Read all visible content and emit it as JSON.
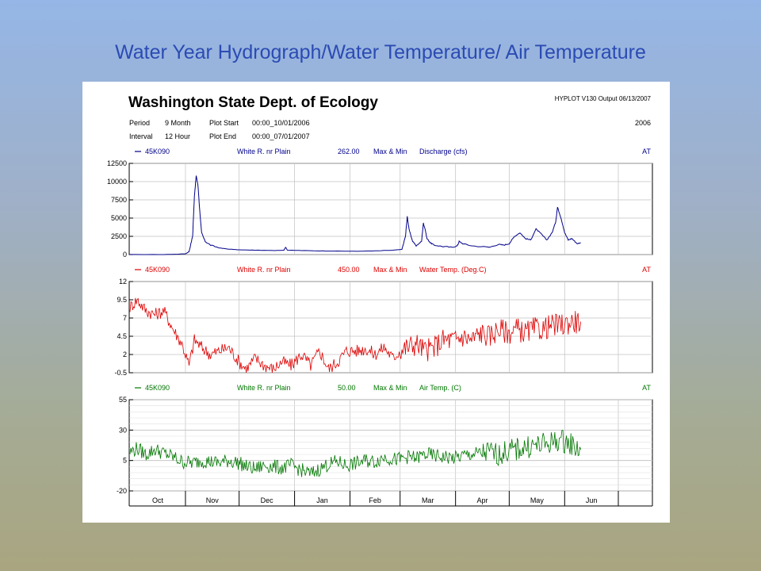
{
  "slide_title": "Water Year Hydrograph/Water Temperature/ Air Temperature",
  "header": {
    "agency": "Washington State Dept. of Ecology",
    "program": "HYPLOT V130 Output 06/13/2007",
    "year": "2006",
    "period_label": "Period",
    "period_value": "9 Month",
    "interval_label": "Interval",
    "interval_value": "12 Hour",
    "plot_start_label": "Plot Start",
    "plot_start_value": "00:00_10/01/2006",
    "plot_end_label": "Plot End",
    "plot_end_value": "00:00_07/01/2007"
  },
  "colors": {
    "discharge": "#00008b",
    "water_temp": "#dd0000",
    "air_temp": "#007700"
  },
  "chart_data": [
    {
      "type": "line",
      "station": "45K090",
      "site": "White R. nr Plain",
      "stat_value": "262.00",
      "stat_label": "Max & Min",
      "parameter": "Discharge (cfs)",
      "flag": "AT",
      "ylim": [
        0,
        12500
      ],
      "yticks": [
        "12500",
        "10000",
        "7500",
        "5000",
        "2500",
        "0"
      ],
      "x_start": "2006-10-01",
      "x_end": "2007-07-01",
      "series": [
        {
          "x": [
            "2006-10-01",
            "2006-10-20",
            "2006-11-01",
            "2006-11-03",
            "2006-11-05",
            "2006-11-06",
            "2006-11-07",
            "2006-11-08",
            "2006-11-09",
            "2006-11-10",
            "2006-11-12",
            "2006-11-15",
            "2006-11-20",
            "2006-11-25",
            "2006-12-01",
            "2006-12-10",
            "2006-12-20",
            "2006-12-26",
            "2006-12-27",
            "2006-12-28",
            "2007-01-05",
            "2007-01-15",
            "2007-01-25",
            "2007-02-05",
            "2007-02-15",
            "2007-02-25",
            "2007-03-02",
            "2007-03-04",
            "2007-03-05",
            "2007-03-06",
            "2007-03-08",
            "2007-03-10",
            "2007-03-13",
            "2007-03-14",
            "2007-03-15",
            "2007-03-16",
            "2007-03-18",
            "2007-03-20",
            "2007-03-25",
            "2007-03-30",
            "2007-04-02",
            "2007-04-03",
            "2007-04-05",
            "2007-04-10",
            "2007-04-20",
            "2007-04-25",
            "2007-04-28",
            "2007-05-01",
            "2007-05-04",
            "2007-05-07",
            "2007-05-10",
            "2007-05-13",
            "2007-05-16",
            "2007-05-19",
            "2007-05-22",
            "2007-05-25",
            "2007-05-27",
            "2007-05-28",
            "2007-05-30",
            "2007-06-01",
            "2007-06-03",
            "2007-06-05",
            "2007-06-08",
            "2007-06-10"
          ],
          "y": [
            0,
            0,
            100,
            400,
            2500,
            8000,
            10800,
            9500,
            6000,
            3000,
            1800,
            1300,
            900,
            750,
            650,
            600,
            550,
            600,
            1000,
            600,
            550,
            500,
            480,
            450,
            500,
            600,
            700,
            2500,
            5200,
            3500,
            1800,
            1200,
            1800,
            4300,
            3500,
            2200,
            1600,
            1300,
            1100,
            1000,
            1200,
            1800,
            1500,
            1200,
            1000,
            1400,
            1300,
            1500,
            2500,
            3000,
            2200,
            2000,
            3500,
            2800,
            2000,
            3000,
            4500,
            6500,
            5000,
            3000,
            2000,
            2200,
            1500,
            1600
          ]
        }
      ]
    },
    {
      "type": "line",
      "station": "45K090",
      "site": "White R. nr Plain",
      "stat_value": "450.00",
      "stat_label": "Max & Min",
      "parameter": "Water Temp. (Deg.C)",
      "flag": "AT",
      "ylim": [
        -0.5,
        12
      ],
      "yticks": [
        "12",
        "9.5",
        "7",
        "4.5",
        "2",
        "-0.5"
      ],
      "x_start": "2006-10-01",
      "x_end": "2007-07-01",
      "series": [
        {
          "x": [
            "2006-10-01",
            "2006-10-05",
            "2006-10-10",
            "2006-10-15",
            "2006-10-20",
            "2006-10-25",
            "2006-10-30",
            "2006-11-03",
            "2006-11-06",
            "2006-11-10",
            "2006-11-15",
            "2006-11-20",
            "2006-11-25",
            "2006-12-01",
            "2006-12-05",
            "2006-12-10",
            "2006-12-15",
            "2006-12-20",
            "2006-12-25",
            "2006-12-30",
            "2007-01-05",
            "2007-01-10",
            "2007-01-15",
            "2007-01-20",
            "2007-01-25",
            "2007-01-30",
            "2007-02-05",
            "2007-02-10",
            "2007-02-15",
            "2007-02-20",
            "2007-02-25",
            "2007-03-01",
            "2007-03-05",
            "2007-03-10",
            "2007-03-15",
            "2007-03-20",
            "2007-03-25",
            "2007-04-01",
            "2007-04-05",
            "2007-04-10",
            "2007-04-15",
            "2007-04-20",
            "2007-04-25",
            "2007-05-01",
            "2007-05-05",
            "2007-05-10",
            "2007-05-15",
            "2007-05-20",
            "2007-05-25",
            "2007-05-30",
            "2007-06-05",
            "2007-06-10"
          ],
          "y": [
            8.5,
            9.5,
            8.0,
            7.5,
            8.0,
            5.5,
            3.5,
            0.5,
            4.0,
            3.0,
            2.0,
            2.5,
            3.0,
            1.0,
            0.0,
            1.5,
            0.5,
            0.0,
            1.0,
            0.5,
            2.0,
            0.5,
            2.5,
            0.0,
            1.0,
            2.5,
            2.5,
            2.8,
            2.0,
            3.0,
            1.5,
            2.5,
            3.0,
            3.5,
            2.5,
            3.0,
            4.0,
            4.0,
            4.5,
            4.0,
            5.0,
            4.5,
            5.5,
            5.0,
            5.5,
            5.0,
            5.5,
            5.5,
            6.0,
            6.0,
            6.5,
            6.5
          ]
        }
      ]
    },
    {
      "type": "line",
      "station": "45K090",
      "site": "White R. nr Plain",
      "stat_value": "50.00",
      "stat_label": "Max & Min",
      "parameter": "Air Temp. (C)",
      "flag": "AT",
      "ylim": [
        -20,
        55
      ],
      "yticks": [
        "55",
        "30",
        "5",
        "-20"
      ],
      "x_start": "2006-10-01",
      "x_end": "2007-07-01",
      "categories": [
        "Oct",
        "Nov",
        "Dec",
        "Jan",
        "Feb",
        "Mar",
        "Apr",
        "May",
        "Jun"
      ],
      "series": [
        {
          "x": [
            "2006-10-01",
            "2006-10-05",
            "2006-10-10",
            "2006-10-15",
            "2006-10-20",
            "2006-10-25",
            "2006-10-30",
            "2006-11-05",
            "2006-11-10",
            "2006-11-15",
            "2006-11-20",
            "2006-11-25",
            "2006-12-01",
            "2006-12-05",
            "2006-12-10",
            "2006-12-15",
            "2006-12-20",
            "2006-12-25",
            "2006-12-30",
            "2007-01-05",
            "2007-01-10",
            "2007-01-15",
            "2007-01-20",
            "2007-01-25",
            "2007-01-30",
            "2007-02-05",
            "2007-02-10",
            "2007-02-15",
            "2007-02-20",
            "2007-02-25",
            "2007-03-01",
            "2007-03-05",
            "2007-03-10",
            "2007-03-15",
            "2007-03-20",
            "2007-03-25",
            "2007-04-01",
            "2007-04-05",
            "2007-04-10",
            "2007-04-15",
            "2007-04-20",
            "2007-04-25",
            "2007-05-01",
            "2007-05-05",
            "2007-05-10",
            "2007-05-15",
            "2007-05-20",
            "2007-05-25",
            "2007-05-30",
            "2007-06-05",
            "2007-06-10"
          ],
          "y": [
            12,
            15,
            10,
            14,
            11,
            8,
            4,
            3,
            5,
            4,
            3,
            5,
            3,
            0,
            -2,
            1,
            0,
            -1,
            1,
            -3,
            -6,
            -2,
            2,
            4,
            1,
            3,
            5,
            4,
            8,
            6,
            6,
            8,
            7,
            10,
            9,
            8,
            7,
            9,
            10,
            11,
            12,
            10,
            13,
            14,
            16,
            17,
            18,
            20,
            22,
            18,
            14
          ]
        }
      ]
    }
  ]
}
